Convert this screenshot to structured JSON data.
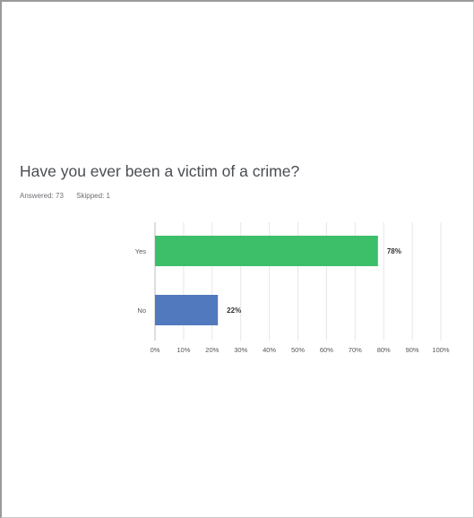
{
  "question": {
    "title": "Have you ever been a victim of a crime?",
    "answered": "Answered: 73",
    "skipped": "Skipped: 1"
  },
  "chart_data": {
    "type": "bar",
    "orientation": "horizontal",
    "categories": [
      "Yes",
      "No"
    ],
    "values": [
      78,
      22
    ],
    "value_labels": [
      "78%",
      "22%"
    ],
    "colors": [
      "#3dbf6a",
      "#5179bd"
    ],
    "xlim": [
      0,
      100
    ],
    "x_ticks": [
      "0%",
      "10%",
      "20%",
      "30%",
      "40%",
      "50%",
      "60%",
      "70%",
      "80%",
      "90%",
      "100%"
    ],
    "grid": "vertical",
    "title": "",
    "xlabel": "",
    "ylabel": ""
  }
}
